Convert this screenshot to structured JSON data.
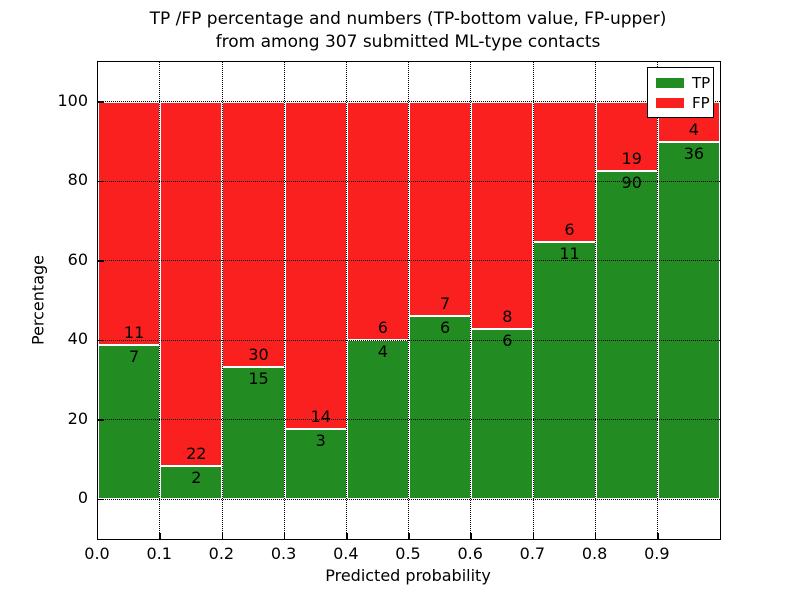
{
  "title": {
    "line1": "TP /FP percentage and numbers (TP-bottom value, FP-upper)",
    "line2": "from among 307 submitted ML-type contacts"
  },
  "axes": {
    "xlabel": "Predicted probability",
    "ylabel": "Percentage",
    "xlim": [
      0.0,
      1.0
    ],
    "ylim": [
      -10,
      110
    ],
    "x_ticks": [
      "0.0",
      "0.1",
      "0.2",
      "0.3",
      "0.4",
      "0.5",
      "0.6",
      "0.7",
      "0.8",
      "0.9"
    ],
    "y_ticks": [
      "0",
      "20",
      "40",
      "60",
      "80",
      "100"
    ],
    "grid_style": "dotted"
  },
  "legend": {
    "position": "upper-right",
    "items": [
      {
        "label": "TP",
        "color": "#228b22"
      },
      {
        "label": "FP",
        "color": "#fa2020"
      }
    ]
  },
  "chart_data": {
    "type": "bar",
    "stacked": true,
    "normalized_to_percent": true,
    "title": "TP /FP percentage and numbers (TP-bottom value, FP-upper) from among 307 submitted ML-type contacts",
    "xlabel": "Predicted probability",
    "ylabel": "Percentage",
    "xlim": [
      0.0,
      1.0
    ],
    "ylim": [
      -10,
      110
    ],
    "bin_edges": [
      0.0,
      0.1,
      0.2,
      0.3,
      0.4,
      0.5,
      0.6,
      0.7,
      0.8,
      0.9,
      1.0
    ],
    "bins": [
      "0.0-0.1",
      "0.1-0.2",
      "0.2-0.3",
      "0.3-0.4",
      "0.4-0.5",
      "0.5-0.6",
      "0.6-0.7",
      "0.7-0.8",
      "0.8-0.9",
      "0.9-1.0"
    ],
    "series": [
      {
        "name": "TP",
        "color": "#228b22",
        "counts": [
          7,
          2,
          15,
          3,
          4,
          6,
          6,
          11,
          90,
          36
        ]
      },
      {
        "name": "FP",
        "color": "#fa2020",
        "counts": [
          11,
          22,
          30,
          14,
          6,
          7,
          8,
          6,
          19,
          4
        ]
      }
    ],
    "tp_percent": [
      38.9,
      8.3,
      33.3,
      17.6,
      40.0,
      46.2,
      42.9,
      64.7,
      82.6,
      90.0
    ],
    "bar_total_percent": 100,
    "total_contacts": 307
  }
}
